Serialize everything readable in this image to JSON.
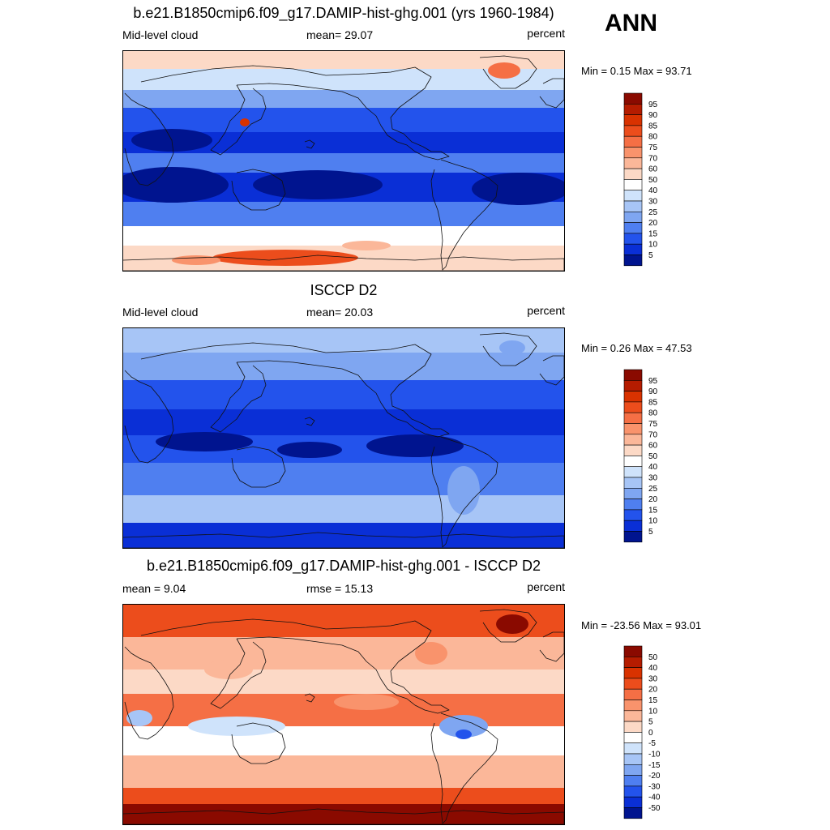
{
  "season": "ANN",
  "panels": [
    {
      "title": "b.e21.B1850cmip6.f09_g17.DAMIP-hist-ghg.001 (yrs 1960-1984)",
      "left": "Mid-level cloud",
      "center": "mean=  29.07",
      "right": "percent",
      "minmax": "Min =   0.15 Max =  93.71"
    },
    {
      "title": "ISCCP D2",
      "left": "Mid-level cloud",
      "center": "mean=  20.03",
      "right": "percent",
      "minmax": "Min =   0.26 Max =  47.53"
    },
    {
      "title": "b.e21.B1850cmip6.f09_g17.DAMIP-hist-ghg.001 - ISCCP D2",
      "left": "mean =   9.04",
      "center": "rmse =  15.13",
      "right": "percent",
      "minmax": "Min = -23.56 Max =  93.01"
    }
  ],
  "chart_data": [
    {
      "type": "heatmap",
      "title": "b.e21.B1850cmip6.f09_g17.DAMIP-hist-ghg.001 (yrs 1960-1984)",
      "variable": "Mid-level cloud",
      "units": "percent",
      "mean": 29.07,
      "min": 0.15,
      "max": 93.71,
      "colorbar_levels": [
        "95",
        "90",
        "85",
        "80",
        "75",
        "70",
        "60",
        "50",
        "40",
        "30",
        "25",
        "20",
        "15",
        "10",
        "5"
      ],
      "colorbar_colors": [
        "#8a0a00",
        "#b51c00",
        "#d93200",
        "#ec4d1c",
        "#f56f45",
        "#f9936c",
        "#fbb799",
        "#fcd9c6",
        "#ffffff",
        "#cfe3fb",
        "#a7c5f6",
        "#7fa6f1",
        "#4f7ff0",
        "#2353ec",
        "#0a2fd6",
        "#00148f"
      ]
    },
    {
      "type": "heatmap",
      "title": "ISCCP D2",
      "variable": "Mid-level cloud",
      "units": "percent",
      "mean": 20.03,
      "min": 0.26,
      "max": 47.53,
      "colorbar_levels": [
        "95",
        "90",
        "85",
        "80",
        "75",
        "70",
        "60",
        "50",
        "40",
        "30",
        "25",
        "20",
        "15",
        "10",
        "5"
      ],
      "colorbar_colors": [
        "#8a0a00",
        "#b51c00",
        "#d93200",
        "#ec4d1c",
        "#f56f45",
        "#f9936c",
        "#fbb799",
        "#fcd9c6",
        "#ffffff",
        "#cfe3fb",
        "#a7c5f6",
        "#7fa6f1",
        "#4f7ff0",
        "#2353ec",
        "#0a2fd6",
        "#00148f"
      ]
    },
    {
      "type": "heatmap",
      "title": "b.e21.B1850cmip6.f09_g17.DAMIP-hist-ghg.001 - ISCCP D2",
      "units": "percent",
      "mean": 9.04,
      "rmse": 15.13,
      "min": -23.56,
      "max": 93.01,
      "colorbar_levels": [
        "50",
        "40",
        "30",
        "20",
        "15",
        "10",
        "5",
        "0",
        "-5",
        "-10",
        "-15",
        "-20",
        "-30",
        "-40",
        "-50"
      ],
      "colorbar_colors": [
        "#8a0a00",
        "#b51c00",
        "#d93200",
        "#ec4d1c",
        "#f56f45",
        "#f9936c",
        "#fbb799",
        "#fcd9c6",
        "#ffffff",
        "#cfe3fb",
        "#a7c5f6",
        "#7fa6f1",
        "#4f7ff0",
        "#2353ec",
        "#0a2fd6",
        "#00148f"
      ]
    }
  ]
}
